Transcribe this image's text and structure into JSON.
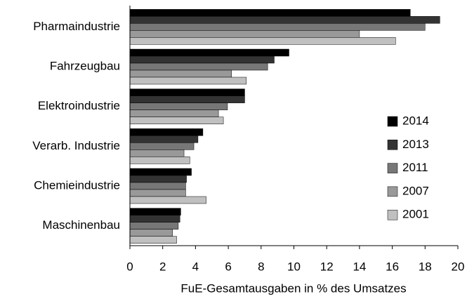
{
  "chart_data": {
    "type": "hbar",
    "x_label": "FuE-Gesamtausgaben in % des Umsatzes",
    "categories": [
      "Pharmaindustrie",
      "Fahrzeugbau",
      "Elektroindustrie",
      "Verarb. Industrie",
      "Chemieindustrie",
      "Maschinenbau"
    ],
    "series": [
      {
        "name": "2014",
        "color": "#000000",
        "values": [
          17.1,
          9.7,
          7.0,
          4.45,
          3.75,
          3.1
        ]
      },
      {
        "name": "2013",
        "color": "#333333",
        "values": [
          18.9,
          8.8,
          7.0,
          4.15,
          3.45,
          3.05
        ]
      },
      {
        "name": "2011",
        "color": "#777777",
        "values": [
          18.0,
          8.4,
          5.95,
          3.9,
          3.4,
          2.95
        ]
      },
      {
        "name": "2007",
        "color": "#999999",
        "values": [
          14.0,
          6.2,
          5.4,
          3.3,
          3.4,
          2.6
        ]
      },
      {
        "name": "2001",
        "color": "#c0c0c0",
        "values": [
          16.2,
          7.1,
          5.7,
          3.65,
          4.65,
          2.85
        ]
      }
    ],
    "xlim": [
      0,
      20
    ],
    "xticks": [
      0,
      2,
      4,
      6,
      8,
      10,
      12,
      14,
      16,
      18,
      20
    ],
    "legend": "right"
  }
}
